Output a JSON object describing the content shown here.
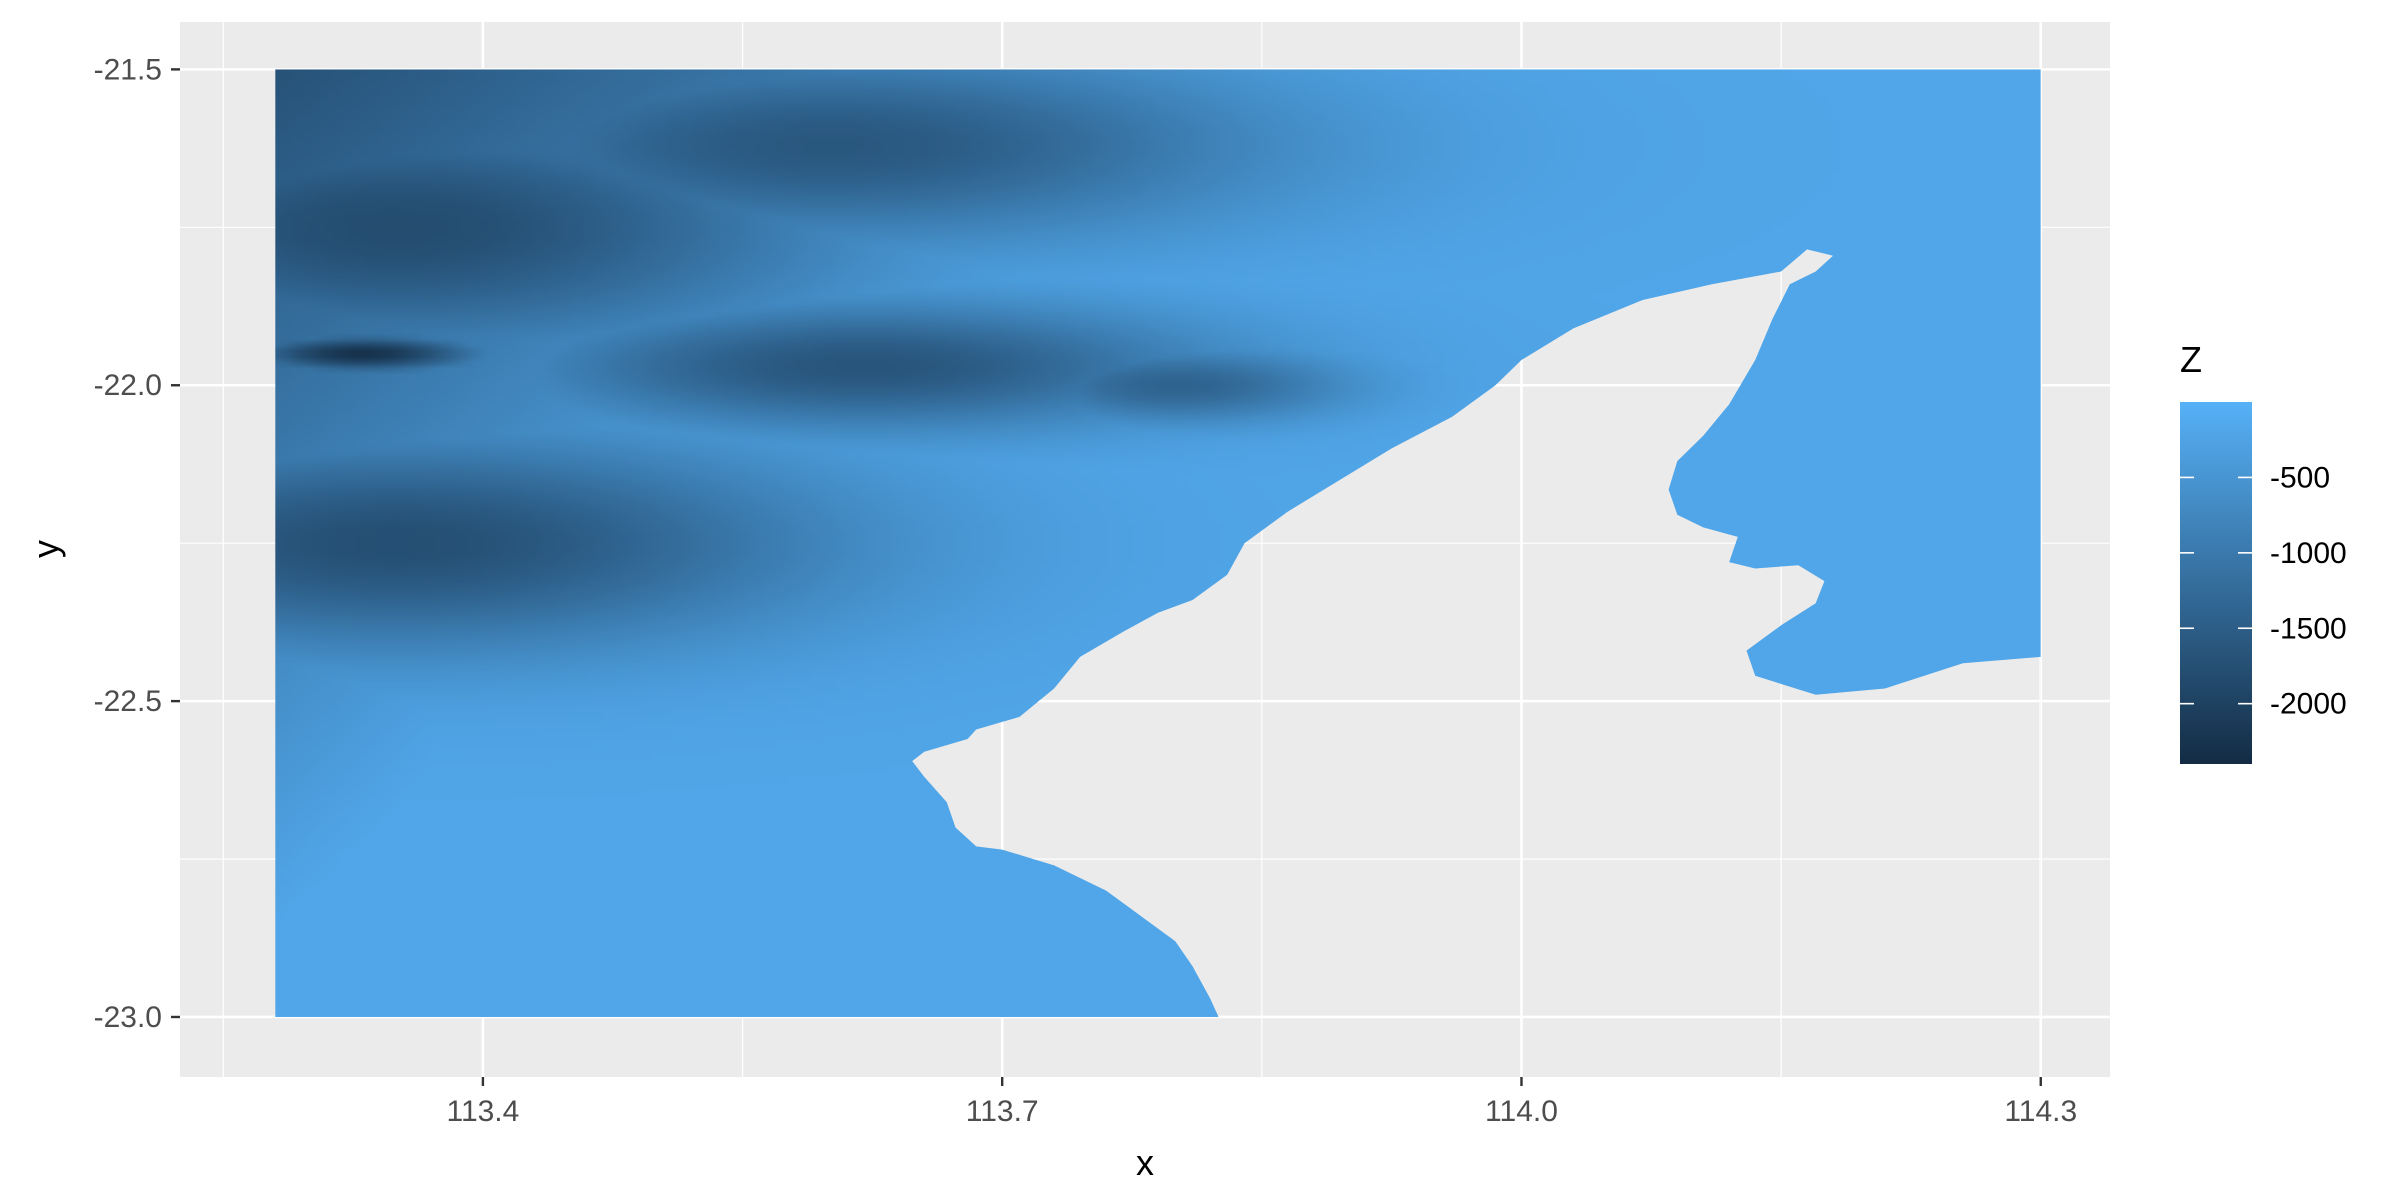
{
  "chart_data": {
    "type": "heatmap",
    "title": "",
    "xlabel": "x",
    "ylabel": "y",
    "xlim": [
      113.225,
      114.34
    ],
    "ylim": [
      -23.095,
      -21.425
    ],
    "data_extent": {
      "x": [
        113.28,
        114.3
      ],
      "y": [
        -23.0,
        -21.5
      ]
    },
    "x_ticks": [
      113.4,
      113.7,
      114.0,
      114.3
    ],
    "x_tick_labels": [
      "113.4",
      "113.7",
      "114.0",
      "114.3"
    ],
    "x_minor_ticks": [
      113.25,
      113.55,
      113.85,
      114.15
    ],
    "y_ticks": [
      -21.5,
      -22.0,
      -22.5,
      -23.0
    ],
    "y_tick_labels": [
      "-21.5",
      "-22.0",
      "-22.5",
      "-23.0"
    ],
    "y_minor_ticks": [
      -21.75,
      -22.25,
      -22.75
    ],
    "grid": true,
    "legend": {
      "title": "Z",
      "placement": "right",
      "range": [
        -2400,
        0
      ],
      "ticks": [
        -500,
        -1000,
        -1500,
        -2000
      ],
      "tick_labels": [
        "-500",
        "-1000",
        "-1500",
        "-2000"
      ],
      "low_color": "#132B43",
      "high_color": "#56B1F7"
    },
    "z_field": {
      "description_note": "depth values (Z) estimated from colour; NaN over land",
      "deep_centers": [
        {
          "x": 113.33,
          "y": -21.95,
          "z": -2300,
          "rx": 0.07,
          "ry": 0.03
        },
        {
          "x": 113.35,
          "y": -21.75,
          "z": -1800,
          "rx": 0.25,
          "ry": 0.2
        },
        {
          "x": 113.35,
          "y": -22.25,
          "z": -1750,
          "rx": 0.25,
          "ry": 0.17
        },
        {
          "x": 113.62,
          "y": -21.97,
          "z": -1650,
          "rx": 0.2,
          "ry": 0.1
        },
        {
          "x": 113.8,
          "y": -22.0,
          "z": -1400,
          "rx": 0.1,
          "ry": 0.06
        },
        {
          "x": 113.6,
          "y": -21.62,
          "z": -1600,
          "rx": 0.25,
          "ry": 0.15
        }
      ]
    },
    "land_outline": [
      [
        113.7,
        -22.735
      ],
      [
        113.685,
        -22.73
      ],
      [
        113.673,
        -22.7
      ],
      [
        113.668,
        -22.66
      ],
      [
        113.655,
        -22.62
      ],
      [
        113.648,
        -22.595
      ],
      [
        113.655,
        -22.58
      ],
      [
        113.68,
        -22.56
      ],
      [
        113.685,
        -22.545
      ],
      [
        113.71,
        -22.525
      ],
      [
        113.73,
        -22.48
      ],
      [
        113.745,
        -22.43
      ],
      [
        113.77,
        -22.39
      ],
      [
        113.79,
        -22.36
      ],
      [
        113.81,
        -22.34
      ],
      [
        113.83,
        -22.3
      ],
      [
        113.84,
        -22.25
      ],
      [
        113.865,
        -22.2
      ],
      [
        113.895,
        -22.15
      ],
      [
        113.925,
        -22.1
      ],
      [
        113.96,
        -22.05
      ],
      [
        113.985,
        -22.0
      ],
      [
        114.0,
        -21.96
      ],
      [
        114.03,
        -21.91
      ],
      [
        114.07,
        -21.865
      ],
      [
        114.11,
        -21.84
      ],
      [
        114.15,
        -21.82
      ],
      [
        114.165,
        -21.785
      ],
      [
        114.18,
        -21.795
      ],
      [
        114.17,
        -21.82
      ],
      [
        114.155,
        -21.84
      ],
      [
        114.145,
        -21.895
      ],
      [
        114.135,
        -21.96
      ],
      [
        114.12,
        -22.03
      ],
      [
        114.105,
        -22.08
      ],
      [
        114.09,
        -22.12
      ],
      [
        114.085,
        -22.165
      ],
      [
        114.09,
        -22.205
      ],
      [
        114.105,
        -22.225
      ],
      [
        114.125,
        -22.24
      ],
      [
        114.12,
        -22.28
      ],
      [
        114.135,
        -22.29
      ],
      [
        114.16,
        -22.285
      ],
      [
        114.175,
        -22.31
      ],
      [
        114.17,
        -22.345
      ],
      [
        114.15,
        -22.38
      ],
      [
        114.13,
        -22.42
      ],
      [
        114.135,
        -22.46
      ],
      [
        114.17,
        -22.49
      ],
      [
        114.21,
        -22.48
      ],
      [
        114.255,
        -22.44
      ],
      [
        114.3,
        -22.43
      ],
      [
        114.3,
        -23.0
      ],
      [
        113.825,
        -23.0
      ],
      [
        113.82,
        -22.97
      ],
      [
        113.81,
        -22.92
      ],
      [
        113.8,
        -22.88
      ],
      [
        113.78,
        -22.84
      ],
      [
        113.76,
        -22.8
      ],
      [
        113.73,
        -22.76
      ]
    ]
  },
  "colors": {
    "panel_background": "#EBEBEB",
    "grid_major": "#FFFFFF",
    "tick_text": "#4D4D4D",
    "tick_mark": "#333333"
  }
}
